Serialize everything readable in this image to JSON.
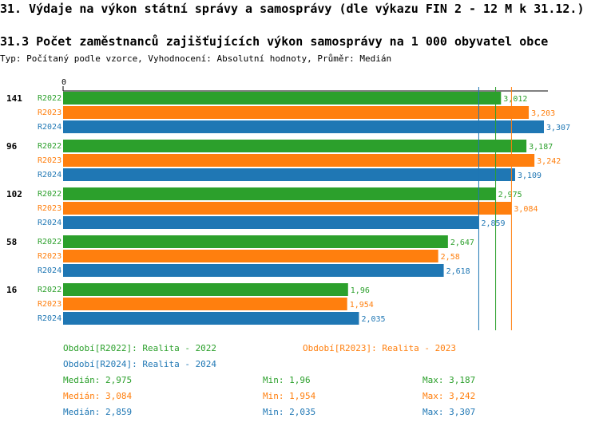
{
  "title": "31. Výdaje na výkon státní správy a samosprávy (dle výkazu FIN 2 - 12 M k 31.12.)",
  "subtitle": "31.3 Počet zaměstnanců zajišťujících výkon samosprávy na 1 000 obyvatel obce",
  "info": "Typ: Počítaný podle vzorce, Vyhodnocení: Absolutní hodnoty, Průměr: Medián",
  "colors": {
    "R2022": "#2ca02c",
    "R2023": "#ff7f0e",
    "R2024": "#1f77b4"
  },
  "chart_data": {
    "type": "bar",
    "orientation": "horizontal",
    "axis_zero_label": "0",
    "xlim": [
      0,
      3.307
    ],
    "categories": [
      "141",
      "96",
      "102",
      "58",
      "16"
    ],
    "series": [
      {
        "name": "R2022",
        "values": [
          3.012,
          3.187,
          2.975,
          2.647,
          1.96
        ],
        "labels": [
          "3,012",
          "3,187",
          "2,975",
          "2,647",
          "1,96"
        ]
      },
      {
        "name": "R2023",
        "values": [
          3.203,
          3.242,
          3.084,
          2.58,
          1.954
        ],
        "labels": [
          "3,203",
          "3,242",
          "3,084",
          "2,58",
          "1,954"
        ]
      },
      {
        "name": "R2024",
        "values": [
          3.307,
          3.109,
          2.859,
          2.618,
          2.035
        ],
        "labels": [
          "3,307",
          "3,109",
          "2,859",
          "2,618",
          "2,035"
        ]
      }
    ],
    "reference_lines": [
      {
        "series": "R2022",
        "value": 2.975
      },
      {
        "series": "R2023",
        "value": 3.084
      },
      {
        "series": "R2024",
        "value": 2.859
      }
    ]
  },
  "legend": [
    {
      "label": "Období[R2022]: Realita - 2022",
      "series": "R2022"
    },
    {
      "label": "Období[R2023]: Realita - 2023",
      "series": "R2023"
    },
    {
      "label": "Období[R2024]: Realita - 2024",
      "series": "R2024"
    }
  ],
  "stats": [
    {
      "series": "R2022",
      "median": "Medián: 2,975",
      "min": "Min: 1,96",
      "max": "Max: 3,187"
    },
    {
      "series": "R2023",
      "median": "Medián: 3,084",
      "min": "Min: 1,954",
      "max": "Max: 3,242"
    },
    {
      "series": "R2024",
      "median": "Medián: 2,859",
      "min": "Min: 2,035",
      "max": "Max: 3,307"
    }
  ]
}
